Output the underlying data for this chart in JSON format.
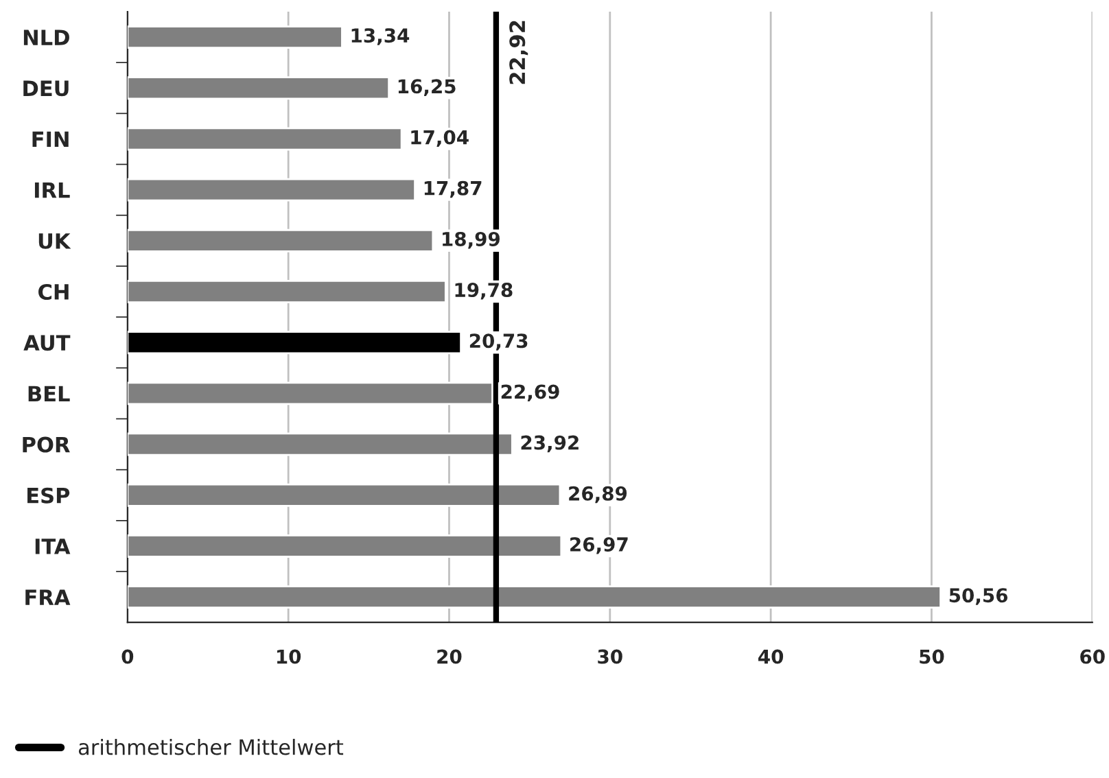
{
  "chart_data": {
    "type": "bar",
    "orientation": "horizontal",
    "categories": [
      "NLD",
      "DEU",
      "FIN",
      "IRL",
      "UK",
      "CH",
      "AUT",
      "BEL",
      "POR",
      "ESP",
      "ITA",
      "FRA"
    ],
    "values": [
      13.34,
      16.25,
      17.04,
      17.87,
      18.99,
      19.78,
      20.73,
      22.69,
      23.92,
      26.89,
      26.97,
      50.56
    ],
    "value_labels": [
      "13,34",
      "16,25",
      "17,04",
      "17,87",
      "18,99",
      "19,78",
      "20,73",
      "22,69",
      "23,92",
      "26,89",
      "26,97",
      "50,56"
    ],
    "colors": [
      "#808080",
      "#808080",
      "#808080",
      "#808080",
      "#808080",
      "#808080",
      "#000000",
      "#808080",
      "#808080",
      "#808080",
      "#808080",
      "#808080"
    ],
    "xlim": [
      0,
      60
    ],
    "xticks": [
      0,
      10,
      20,
      30,
      40,
      50,
      60
    ],
    "grid": "x",
    "ref_lines": [
      {
        "axis": "x",
        "value": 22.92,
        "label": "22,92",
        "color": "#000000"
      }
    ],
    "annotations": [
      "arithmetischer Mittelwert"
    ]
  }
}
